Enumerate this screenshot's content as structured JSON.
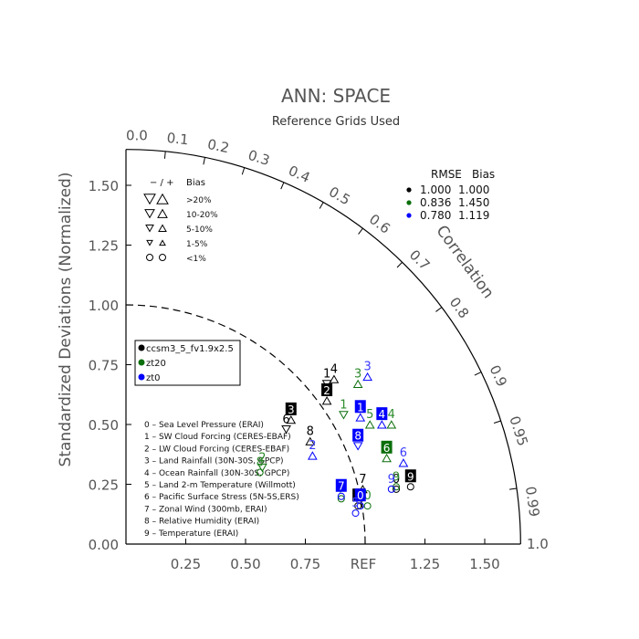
{
  "chart_data": {
    "type": "scatter",
    "title": "ANN: SPACE",
    "subtitle": "Reference Grids Used",
    "ylabel": "Standardized Deviations (Normalized)",
    "correlation_label": "Correlation",
    "ref_label": "REF",
    "std_ticks": [
      "0.00",
      "0.25",
      "0.50",
      "0.75",
      "1.00",
      "1.25",
      "1.50"
    ],
    "x_tick_labels": [
      "0.25",
      "0.50",
      "0.75",
      "1.25",
      "1.50"
    ],
    "x_tick_values": [
      0.25,
      0.5,
      0.75,
      1.25,
      1.5
    ],
    "std_tick_values": [
      0,
      0.25,
      0.5,
      0.75,
      1.0,
      1.25,
      1.5
    ],
    "std_max": 1.65,
    "outer_end_label": "1.0",
    "correlation_ticks": [
      {
        "label": "0.0",
        "r": 0.0
      },
      {
        "label": "0.1",
        "r": 0.1
      },
      {
        "label": "0.2",
        "r": 0.2
      },
      {
        "label": "0.3",
        "r": 0.3
      },
      {
        "label": "0.4",
        "r": 0.4
      },
      {
        "label": "0.5",
        "r": 0.5
      },
      {
        "label": "0.6",
        "r": 0.6
      },
      {
        "label": "0.7",
        "r": 0.7
      },
      {
        "label": "0.8",
        "r": 0.8
      },
      {
        "label": "0.9",
        "r": 0.9
      },
      {
        "label": "0.95",
        "r": 0.95
      },
      {
        "label": "0.99",
        "r": 0.99
      }
    ],
    "bias_legend": {
      "header_symbols": "− / +",
      "header_title": "Bias",
      "rows": [
        {
          "label": ">20%",
          "symbol": "triangle",
          "size": 12
        },
        {
          "label": "10-20%",
          "symbol": "triangle",
          "size": 10
        },
        {
          "label": "5-10%",
          "symbol": "triangle",
          "size": 8
        },
        {
          "label": "1-5%",
          "symbol": "triangle",
          "size": 6
        },
        {
          "label": "<1%",
          "symbol": "circle",
          "size": 7
        }
      ]
    },
    "rmse_legend": {
      "header_rmse": "RMSE",
      "header_bias": "Bias",
      "rows": [
        {
          "rmse": "1.000",
          "bias": "1.000",
          "color": "#000000"
        },
        {
          "rmse": "0.836",
          "bias": "1.450",
          "color": "#0a6e0a"
        },
        {
          "rmse": "0.780",
          "bias": "1.119",
          "color": "#0000ff"
        }
      ]
    },
    "series": [
      {
        "name": "ccsm3_5_fv1.9x2.5",
        "color": "#000000",
        "text_color": "#000000",
        "box_color": "#000000"
      },
      {
        "name": "zt20",
        "color": "#0a6e0a",
        "text_color": "#2e8b2e",
        "box_color": "#0a6e0a"
      },
      {
        "name": "zt0",
        "color": "#0000ff",
        "text_color": "#3b3bff",
        "box_color": "#0000ff"
      }
    ],
    "variables": [
      "0 – Sea Level Pressure (ERAI)",
      "1 – SW Cloud Forcing (CERES-EBAF)",
      "2 – LW Cloud Forcing (CERES-EBAF)",
      "3 – Land Rainfall (30N-30S, GPCP)",
      "4 – Ocean Rainfall (30N-30S, GPCP)",
      "5 – Land 2-m Temperature (Willmott)",
      "6 – Pacific Surface Stress (5N-5S,ERS)",
      "7 – Zonal Wind (300mb, ERAI)",
      "8 – Relative Humidity (ERAI)",
      "9 – Temperature (ERAI)"
    ],
    "points": [
      {
        "series": 0,
        "id": "0",
        "x": 1.13,
        "y": 0.26,
        "marker": "circle",
        "boxed": false
      },
      {
        "series": 0,
        "id": "1",
        "x": 0.84,
        "y": 0.7,
        "marker": "triangle-down",
        "boxed": false
      },
      {
        "series": 0,
        "id": "2",
        "x": 0.84,
        "y": 0.63,
        "marker": "triangle-up",
        "boxed": true
      },
      {
        "series": 0,
        "id": "3",
        "x": 0.69,
        "y": 0.55,
        "marker": "triangle-up",
        "boxed": true
      },
      {
        "series": 0,
        "id": "4",
        "x": 0.87,
        "y": 0.72,
        "marker": "triangle-up",
        "boxed": false
      },
      {
        "series": 0,
        "id": "5",
        "x": 0.97,
        "y": 0.19,
        "marker": "circle",
        "boxed": true
      },
      {
        "series": 0,
        "id": "6",
        "x": 0.67,
        "y": 0.51,
        "marker": "triangle-down",
        "boxed": false
      },
      {
        "series": 0,
        "id": "7",
        "x": 0.99,
        "y": 0.26,
        "marker": "triangle-up",
        "boxed": false
      },
      {
        "series": 0,
        "id": "8",
        "x": 0.77,
        "y": 0.46,
        "marker": "triangle-up",
        "boxed": false
      },
      {
        "series": 0,
        "id": "9",
        "x": 1.19,
        "y": 0.27,
        "marker": "circle",
        "boxed": true
      },
      {
        "series": 1,
        "id": "0",
        "x": 1.01,
        "y": 0.19,
        "marker": "circle",
        "boxed": false
      },
      {
        "series": 1,
        "id": "1",
        "x": 0.91,
        "y": 0.57,
        "marker": "triangle-down",
        "boxed": false
      },
      {
        "series": 1,
        "id": "2",
        "x": 0.57,
        "y": 0.35,
        "marker": "triangle-down",
        "boxed": false
      },
      {
        "series": 1,
        "id": "3",
        "x": 0.97,
        "y": 0.7,
        "marker": "triangle-up",
        "boxed": false
      },
      {
        "series": 1,
        "id": "4",
        "x": 1.11,
        "y": 0.53,
        "marker": "triangle-up",
        "boxed": false
      },
      {
        "series": 1,
        "id": "5",
        "x": 1.02,
        "y": 0.53,
        "marker": "triangle-up",
        "boxed": false
      },
      {
        "series": 1,
        "id": "6",
        "x": 1.09,
        "y": 0.39,
        "marker": "triangle-up",
        "boxed": true
      },
      {
        "series": 1,
        "id": "7",
        "x": 0.9,
        "y": 0.22,
        "marker": "circle",
        "boxed": false
      },
      {
        "series": 1,
        "id": "8",
        "x": 0.56,
        "y": 0.33,
        "marker": "circle",
        "boxed": false
      },
      {
        "series": 1,
        "id": "9",
        "x": 1.13,
        "y": 0.27,
        "marker": "circle",
        "boxed": false
      },
      {
        "series": 2,
        "id": "0",
        "x": 0.98,
        "y": 0.19,
        "marker": "circle",
        "boxed": true
      },
      {
        "series": 2,
        "id": "1",
        "x": 0.98,
        "y": 0.56,
        "marker": "triangle-up",
        "boxed": true
      },
      {
        "series": 2,
        "id": "2",
        "x": 0.78,
        "y": 0.4,
        "marker": "triangle-up",
        "boxed": false
      },
      {
        "series": 2,
        "id": "3",
        "x": 1.01,
        "y": 0.73,
        "marker": "triangle-up",
        "boxed": false
      },
      {
        "series": 2,
        "id": "4",
        "x": 1.07,
        "y": 0.53,
        "marker": "triangle-up",
        "boxed": true
      },
      {
        "series": 2,
        "id": "5",
        "x": 0.96,
        "y": 0.16,
        "marker": "circle",
        "boxed": false
      },
      {
        "series": 2,
        "id": "6",
        "x": 1.16,
        "y": 0.37,
        "marker": "triangle-up",
        "boxed": false
      },
      {
        "series": 2,
        "id": "7",
        "x": 0.9,
        "y": 0.23,
        "marker": "circle",
        "boxed": true
      },
      {
        "series": 2,
        "id": "8",
        "x": 0.97,
        "y": 0.44,
        "marker": "triangle-down",
        "boxed": true
      },
      {
        "series": 2,
        "id": "9",
        "x": 1.11,
        "y": 0.26,
        "marker": "circle",
        "boxed": false
      }
    ]
  }
}
